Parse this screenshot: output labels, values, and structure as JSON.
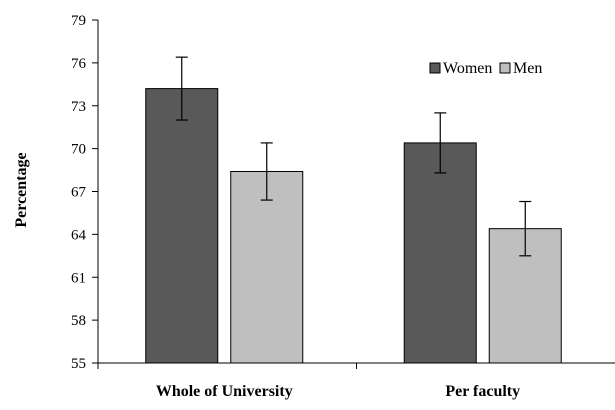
{
  "chart_data": {
    "type": "bar",
    "title": "",
    "xlabel": "",
    "ylabel": "Percentage",
    "categories": [
      "Whole of University",
      "Per faculty"
    ],
    "series": [
      {
        "name": "Women",
        "values": [
          74.2,
          70.4
        ],
        "error": [
          2.2,
          2.1
        ],
        "color": "#595959"
      },
      {
        "name": "Men",
        "values": [
          68.4,
          64.4
        ],
        "error": [
          2.0,
          1.9
        ],
        "color": "#bfbfbf"
      }
    ],
    "ylim": [
      55,
      79
    ],
    "yticks": [
      "55",
      "58",
      "61",
      "64",
      "67",
      "70",
      "73",
      "76",
      "79"
    ],
    "grid": false,
    "legend": "top-right",
    "error_bars": true
  }
}
